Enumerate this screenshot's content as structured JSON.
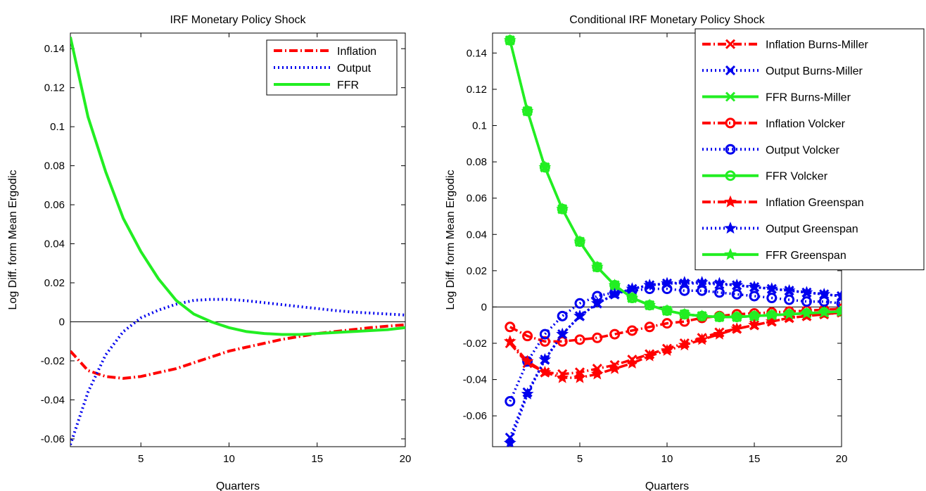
{
  "colors": {
    "inflation": "#ff0000",
    "output": "#0000ee",
    "ffr": "#22ee22",
    "axis": "#000000"
  },
  "chart_data": [
    {
      "type": "line",
      "title": "IRF Monetary Policy Shock",
      "xlabel": "Quarters",
      "ylabel": "Log Diff. form Mean Ergodic",
      "xlim": [
        1,
        20
      ],
      "ylim": [
        -0.064,
        0.148
      ],
      "xticks": [
        5,
        10,
        15,
        20
      ],
      "yticks": [
        -0.06,
        -0.04,
        -0.02,
        0,
        0.02,
        0.04,
        0.06,
        0.08,
        0.1,
        0.12,
        0.14
      ],
      "grid": false,
      "legend_position": "top-right",
      "x": [
        1,
        2,
        3,
        4,
        5,
        6,
        7,
        8,
        9,
        10,
        11,
        12,
        13,
        14,
        15,
        16,
        17,
        18,
        19,
        20
      ],
      "series": [
        {
          "name": "Inflation",
          "color": "#ff0000",
          "style": "dashdot",
          "values": [
            -0.015,
            -0.025,
            -0.028,
            -0.029,
            -0.028,
            -0.026,
            -0.024,
            -0.021,
            -0.018,
            -0.015,
            -0.013,
            -0.011,
            -0.009,
            -0.0075,
            -0.006,
            -0.005,
            -0.004,
            -0.003,
            -0.0022,
            -0.0015
          ]
        },
        {
          "name": "Output",
          "color": "#0000ee",
          "style": "dotted",
          "values": [
            -0.063,
            -0.036,
            -0.017,
            -0.005,
            0.002,
            0.006,
            0.009,
            0.011,
            0.0115,
            0.0115,
            0.0108,
            0.0098,
            0.0088,
            0.0078,
            0.0068,
            0.0058,
            0.005,
            0.0045,
            0.004,
            0.0035
          ]
        },
        {
          "name": "FFR",
          "color": "#22ee22",
          "style": "solid",
          "values": [
            0.146,
            0.105,
            0.077,
            0.053,
            0.036,
            0.022,
            0.011,
            0.004,
            0.0,
            -0.003,
            -0.005,
            -0.006,
            -0.0065,
            -0.0065,
            -0.006,
            -0.0055,
            -0.005,
            -0.0045,
            -0.004,
            -0.003
          ]
        }
      ]
    },
    {
      "type": "line",
      "title": "Conditional IRF Monetary Policy Shock",
      "xlabel": "Quarters",
      "ylabel": "Log Diff. form Mean Ergodic",
      "xlim": [
        0,
        20
      ],
      "ylim": [
        -0.077,
        0.151
      ],
      "xticks": [
        5,
        10,
        15,
        20
      ],
      "yticks": [
        -0.06,
        -0.04,
        -0.02,
        0,
        0.02,
        0.04,
        0.06,
        0.08,
        0.1,
        0.12,
        0.14
      ],
      "grid": false,
      "legend_position": "top-right",
      "x": [
        1,
        2,
        3,
        4,
        5,
        6,
        7,
        8,
        9,
        10,
        11,
        12,
        13,
        14,
        15,
        16,
        17,
        18,
        19,
        20
      ],
      "series": [
        {
          "name": "Inflation Burns-Miller",
          "color": "#ff0000",
          "style": "dashdot",
          "marker": "x",
          "values": [
            -0.02,
            -0.031,
            -0.036,
            -0.037,
            -0.036,
            -0.034,
            -0.032,
            -0.029,
            -0.026,
            -0.023,
            -0.02,
            -0.017,
            -0.014,
            -0.012,
            -0.01,
            -0.008,
            -0.006,
            -0.005,
            -0.004,
            -0.003
          ]
        },
        {
          "name": "Output Burns-Miller",
          "color": "#0000ee",
          "style": "dotted",
          "marker": "x",
          "values": [
            -0.072,
            -0.047,
            -0.029,
            -0.015,
            -0.005,
            0.002,
            0.007,
            0.01,
            0.012,
            0.013,
            0.013,
            0.013,
            0.0125,
            0.012,
            0.011,
            0.01,
            0.009,
            0.008,
            0.007,
            0.006
          ]
        },
        {
          "name": "FFR Burns-Miller",
          "color": "#22ee22",
          "style": "solid",
          "marker": "x",
          "values": [
            0.147,
            0.108,
            0.077,
            0.054,
            0.036,
            0.022,
            0.012,
            0.005,
            0.001,
            -0.002,
            -0.004,
            -0.005,
            -0.0055,
            -0.0055,
            -0.005,
            -0.0045,
            -0.004,
            -0.0035,
            -0.003,
            -0.0025
          ]
        },
        {
          "name": "Inflation Volcker",
          "color": "#ff0000",
          "style": "dashdot",
          "marker": "o",
          "values": [
            -0.011,
            -0.016,
            -0.019,
            -0.019,
            -0.018,
            -0.017,
            -0.015,
            -0.013,
            -0.011,
            -0.009,
            -0.008,
            -0.006,
            -0.005,
            -0.004,
            -0.0035,
            -0.003,
            -0.0025,
            -0.002,
            -0.0015,
            -0.001
          ]
        },
        {
          "name": "Output Volcker",
          "color": "#0000ee",
          "style": "dotted",
          "marker": "o",
          "values": [
            -0.052,
            -0.03,
            -0.015,
            -0.005,
            0.002,
            0.006,
            0.008,
            0.009,
            0.01,
            0.01,
            0.009,
            0.009,
            0.008,
            0.007,
            0.006,
            0.005,
            0.004,
            0.003,
            0.003,
            0.002
          ]
        },
        {
          "name": "FFR Volcker",
          "color": "#22ee22",
          "style": "solid",
          "marker": "o",
          "values": [
            0.147,
            0.108,
            0.077,
            0.054,
            0.036,
            0.022,
            0.012,
            0.005,
            0.001,
            -0.002,
            -0.004,
            -0.005,
            -0.0055,
            -0.0055,
            -0.005,
            -0.0045,
            -0.004,
            -0.0035,
            -0.003,
            -0.0025
          ]
        },
        {
          "name": "Inflation Greenspan",
          "color": "#ff0000",
          "style": "dashdot",
          "marker": "star",
          "values": [
            -0.019,
            -0.03,
            -0.036,
            -0.039,
            -0.039,
            -0.037,
            -0.034,
            -0.031,
            -0.027,
            -0.024,
            -0.021,
            -0.018,
            -0.015,
            -0.012,
            -0.01,
            -0.008,
            -0.006,
            -0.005,
            -0.004,
            -0.003
          ]
        },
        {
          "name": "Output Greenspan",
          "color": "#0000ee",
          "style": "dotted",
          "marker": "star",
          "values": [
            -0.075,
            -0.048,
            -0.029,
            -0.015,
            -0.005,
            0.002,
            0.007,
            0.01,
            0.012,
            0.013,
            0.0135,
            0.0135,
            0.013,
            0.012,
            0.011,
            0.01,
            0.009,
            0.008,
            0.007,
            0.006
          ]
        },
        {
          "name": "FFR Greenspan",
          "color": "#22ee22",
          "style": "solid",
          "marker": "star",
          "values": [
            0.147,
            0.108,
            0.077,
            0.054,
            0.036,
            0.022,
            0.012,
            0.005,
            0.001,
            -0.002,
            -0.004,
            -0.005,
            -0.0055,
            -0.0055,
            -0.005,
            -0.0045,
            -0.004,
            -0.0035,
            -0.003,
            -0.0025
          ]
        }
      ]
    }
  ]
}
